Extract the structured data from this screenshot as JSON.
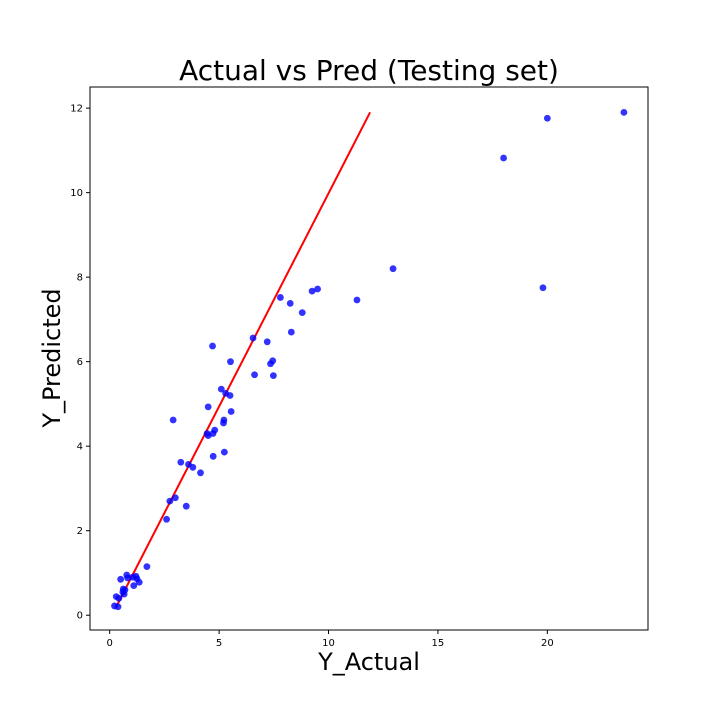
{
  "chart_data": {
    "type": "scatter",
    "title": "Actual vs Pred (Testing set)",
    "xlabel": "Y_Actual",
    "ylabel": "Y_Predicted",
    "xlim": [
      -0.9,
      24.6
    ],
    "ylim": [
      -0.35,
      12.5
    ],
    "xticks": [
      0,
      5,
      10,
      15,
      20
    ],
    "yticks": [
      0,
      2,
      4,
      6,
      8,
      10,
      12
    ],
    "grid": false,
    "point_color": "#0000ff",
    "line_color": "#ff0000",
    "reference_line": {
      "x": [
        0.3,
        11.9
      ],
      "y": [
        0.2,
        11.9
      ]
    },
    "points": [
      {
        "x": 0.22,
        "y": 0.22
      },
      {
        "x": 0.3,
        "y": 0.44
      },
      {
        "x": 0.38,
        "y": 0.2
      },
      {
        "x": 0.42,
        "y": 0.4
      },
      {
        "x": 0.5,
        "y": 0.85
      },
      {
        "x": 0.6,
        "y": 0.55
      },
      {
        "x": 0.62,
        "y": 0.62
      },
      {
        "x": 0.66,
        "y": 0.5
      },
      {
        "x": 0.7,
        "y": 0.6
      },
      {
        "x": 0.78,
        "y": 0.95
      },
      {
        "x": 0.82,
        "y": 0.88
      },
      {
        "x": 1.05,
        "y": 0.9
      },
      {
        "x": 1.1,
        "y": 0.7
      },
      {
        "x": 1.2,
        "y": 0.92
      },
      {
        "x": 1.25,
        "y": 0.86
      },
      {
        "x": 1.35,
        "y": 0.78
      },
      {
        "x": 1.7,
        "y": 1.15
      },
      {
        "x": 2.6,
        "y": 2.27
      },
      {
        "x": 2.75,
        "y": 2.7
      },
      {
        "x": 2.9,
        "y": 4.62
      },
      {
        "x": 3.0,
        "y": 2.78
      },
      {
        "x": 3.25,
        "y": 3.62
      },
      {
        "x": 3.5,
        "y": 2.58
      },
      {
        "x": 3.6,
        "y": 3.57
      },
      {
        "x": 3.8,
        "y": 3.5
      },
      {
        "x": 4.15,
        "y": 3.37
      },
      {
        "x": 4.45,
        "y": 4.3
      },
      {
        "x": 4.5,
        "y": 4.93
      },
      {
        "x": 4.5,
        "y": 4.25
      },
      {
        "x": 4.7,
        "y": 6.37
      },
      {
        "x": 4.72,
        "y": 4.3
      },
      {
        "x": 4.73,
        "y": 3.76
      },
      {
        "x": 4.8,
        "y": 4.38
      },
      {
        "x": 5.1,
        "y": 5.35
      },
      {
        "x": 5.2,
        "y": 4.55
      },
      {
        "x": 5.22,
        "y": 4.62
      },
      {
        "x": 5.24,
        "y": 3.86
      },
      {
        "x": 5.3,
        "y": 5.25
      },
      {
        "x": 5.5,
        "y": 5.2
      },
      {
        "x": 5.52,
        "y": 6.0
      },
      {
        "x": 5.55,
        "y": 4.82
      },
      {
        "x": 6.55,
        "y": 6.56
      },
      {
        "x": 6.62,
        "y": 5.69
      },
      {
        "x": 7.2,
        "y": 6.47
      },
      {
        "x": 7.35,
        "y": 5.95
      },
      {
        "x": 7.45,
        "y": 6.02
      },
      {
        "x": 7.48,
        "y": 5.67
      },
      {
        "x": 7.8,
        "y": 7.52
      },
      {
        "x": 8.25,
        "y": 7.38
      },
      {
        "x": 8.3,
        "y": 6.7
      },
      {
        "x": 8.8,
        "y": 7.16
      },
      {
        "x": 9.25,
        "y": 7.67
      },
      {
        "x": 9.5,
        "y": 7.72
      },
      {
        "x": 11.3,
        "y": 7.46
      },
      {
        "x": 12.95,
        "y": 8.2
      },
      {
        "x": 18.0,
        "y": 10.82
      },
      {
        "x": 19.8,
        "y": 7.75
      },
      {
        "x": 20.0,
        "y": 11.76
      },
      {
        "x": 23.5,
        "y": 11.9
      }
    ]
  }
}
